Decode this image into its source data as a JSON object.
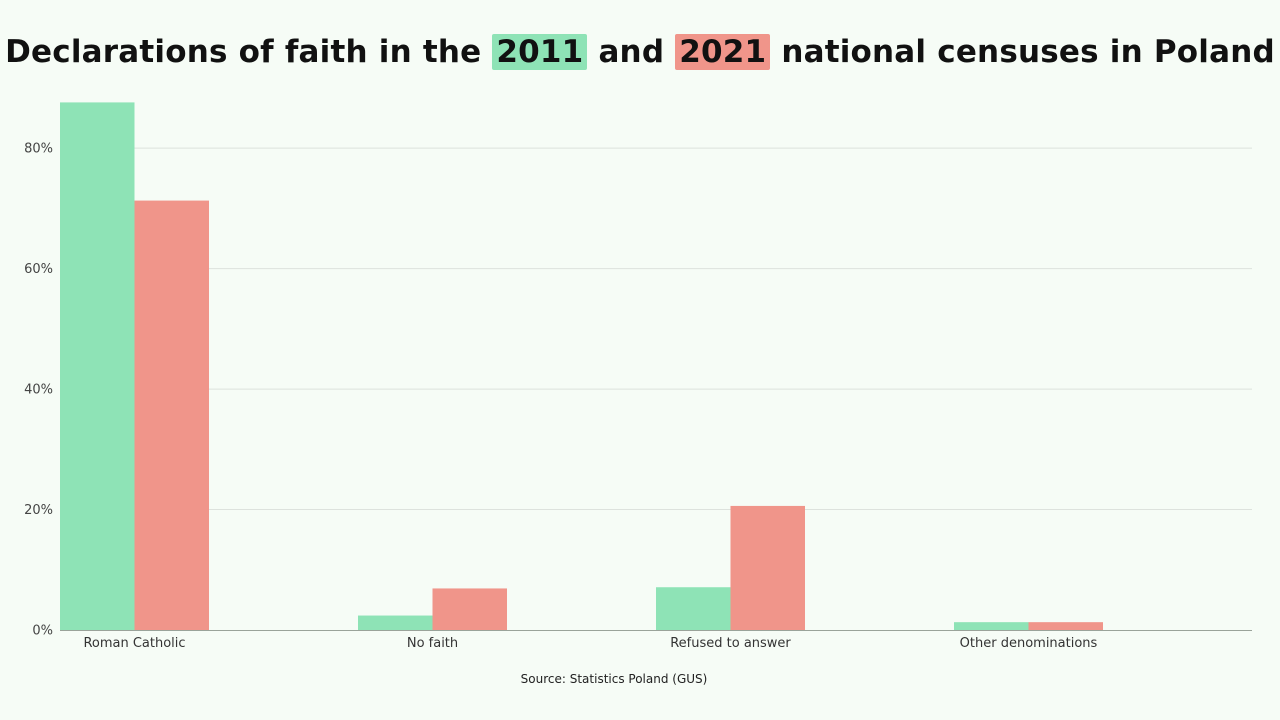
{
  "title": {
    "before": "Declarations of faith in the",
    "year_a": "2011",
    "middle": "and",
    "year_b": "2021",
    "after": "national censuses in Poland"
  },
  "source": "Source: Statistics Poland (GUS)",
  "chart_data": {
    "type": "bar",
    "title": "Declarations of faith in the 2011 and 2021 national censuses in Poland",
    "categories": [
      "Roman Catholic",
      "No faith",
      "Refused to answer",
      "Other denominations"
    ],
    "series": [
      {
        "name": "2011",
        "values": [
          87.6,
          2.4,
          7.1,
          1.3
        ],
        "color": "#8ee3b6"
      },
      {
        "name": "2021",
        "values": [
          71.3,
          6.9,
          20.6,
          1.3
        ],
        "color": "#f0958a"
      }
    ],
    "ylim": [
      0,
      88
    ],
    "yticks": [
      0,
      20,
      40,
      60,
      80
    ],
    "ytick_suffix": "%",
    "grid": true,
    "legend": "none"
  }
}
